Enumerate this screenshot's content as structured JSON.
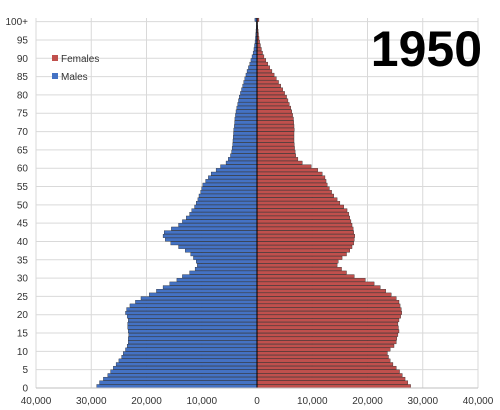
{
  "chart_data": {
    "type": "bar",
    "orientation": "horizontal",
    "title": "1950",
    "xlim": [
      -40000,
      40000
    ],
    "x_ticks": [
      -40000,
      -30000,
      -20000,
      -10000,
      0,
      10000,
      20000,
      30000,
      40000
    ],
    "x_tick_labels": [
      "40,000",
      "30,000",
      "20,000",
      "10,000",
      "0",
      "10,000",
      "20,000",
      "30,000",
      "40,000"
    ],
    "y_ticks": [
      0,
      5,
      10,
      15,
      20,
      25,
      30,
      35,
      40,
      45,
      50,
      55,
      60,
      65,
      70,
      75,
      80,
      85,
      90,
      95,
      100
    ],
    "y_tick_labels": [
      "0",
      "5",
      "10",
      "15",
      "20",
      "25",
      "30",
      "35",
      "40",
      "45",
      "50",
      "55",
      "60",
      "65",
      "70",
      "75",
      "80",
      "85",
      "90",
      "95",
      "100+"
    ],
    "ages": [
      0,
      1,
      2,
      3,
      4,
      5,
      6,
      7,
      8,
      9,
      10,
      11,
      12,
      13,
      14,
      15,
      16,
      17,
      18,
      19,
      20,
      21,
      22,
      23,
      24,
      25,
      26,
      27,
      28,
      29,
      30,
      31,
      32,
      33,
      34,
      35,
      36,
      37,
      38,
      39,
      40,
      41,
      42,
      43,
      44,
      45,
      46,
      47,
      48,
      49,
      50,
      51,
      52,
      53,
      54,
      55,
      56,
      57,
      58,
      59,
      60,
      61,
      62,
      63,
      64,
      65,
      66,
      67,
      68,
      69,
      70,
      71,
      72,
      73,
      74,
      75,
      76,
      77,
      78,
      79,
      80,
      81,
      82,
      83,
      84,
      85,
      86,
      87,
      88,
      89,
      90,
      91,
      92,
      93,
      94,
      95,
      96,
      97,
      98,
      99,
      100
    ],
    "grid": true,
    "legend_position": "top-left",
    "colors": {
      "males": "#4472c4",
      "females": "#c0504d",
      "edge": "#1f1f1f",
      "grid": "#d9d9d9",
      "axis": "#000000"
    },
    "series": [
      {
        "name": "Males",
        "values": [
          29000,
          28500,
          27800,
          27000,
          26500,
          26000,
          25500,
          25000,
          24500,
          24200,
          23800,
          23500,
          23300,
          23300,
          23200,
          23300,
          23400,
          23400,
          23300,
          23500,
          23800,
          23600,
          23000,
          22000,
          21000,
          19500,
          18200,
          17000,
          15800,
          14500,
          13500,
          12200,
          11200,
          10800,
          11000,
          11500,
          12000,
          13000,
          14200,
          15600,
          16600,
          17000,
          16800,
          15500,
          14200,
          13500,
          12800,
          12200,
          11800,
          11300,
          11000,
          10700,
          10500,
          10200,
          10000,
          9800,
          9300,
          8800,
          8300,
          7400,
          6600,
          5600,
          5200,
          4800,
          4600,
          4500,
          4400,
          4350,
          4300,
          4250,
          4200,
          4100,
          4050,
          4000,
          3900,
          3800,
          3650,
          3500,
          3350,
          3200,
          3000,
          2800,
          2600,
          2400,
          2200,
          2000,
          1800,
          1550,
          1300,
          1100,
          900,
          700,
          550,
          450,
          350,
          280,
          220,
          180,
          150,
          120,
          380
        ]
      },
      {
        "name": "Females",
        "values": [
          27800,
          27300,
          26800,
          26300,
          25800,
          25200,
          24600,
          24100,
          23800,
          23600,
          24100,
          24800,
          25200,
          25300,
          25500,
          25700,
          25600,
          25500,
          25700,
          26000,
          26200,
          26100,
          25900,
          25700,
          25200,
          24300,
          23300,
          22300,
          21200,
          19600,
          17600,
          16200,
          15300,
          14500,
          14700,
          15400,
          16200,
          16800,
          17200,
          17500,
          17600,
          17700,
          17500,
          17400,
          17200,
          17000,
          16800,
          16600,
          16300,
          15700,
          15000,
          14500,
          13900,
          13500,
          13100,
          12700,
          12500,
          12300,
          11800,
          11000,
          9800,
          8200,
          7400,
          7000,
          6900,
          6800,
          6750,
          6700,
          6700,
          6700,
          6750,
          6700,
          6650,
          6600,
          6450,
          6300,
          6100,
          5850,
          5600,
          5350,
          5000,
          4650,
          4300,
          3900,
          3500,
          3100,
          2700,
          2300,
          1950,
          1600,
          1250,
          1000,
          800,
          620,
          470,
          360,
          270,
          200,
          150,
          110,
          350
        ]
      }
    ]
  }
}
